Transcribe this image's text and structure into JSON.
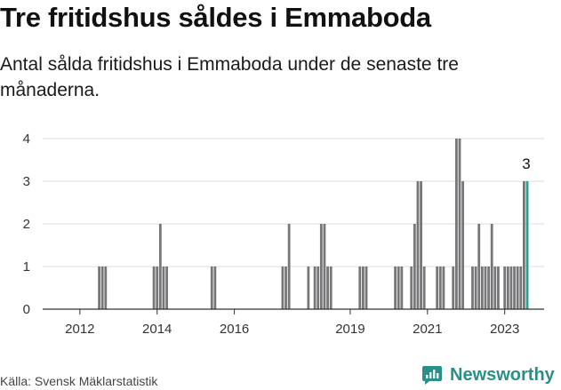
{
  "header": {
    "title": "Tre fritidshus såldes i Emmaboda",
    "subtitle": "Antal sålda fritidshus i Emmaboda under de senaste tre månaderna."
  },
  "footer": {
    "source": "Källa: Svensk Mäklarstatistik",
    "brand": "Newsworthy"
  },
  "colors": {
    "bar": "#77777a",
    "highlight": "#2a9d8f",
    "grid": "#dcdcdc",
    "axis": "#333333"
  },
  "chart_data": {
    "type": "bar",
    "title": "Tre fritidshus såldes i Emmaboda",
    "subtitle": "Antal sålda fritidshus i Emmaboda under de senaste tre månaderna.",
    "xlabel": "",
    "ylabel": "",
    "x_unit": "quarterly, rolling 3-month value at month index (months since Jan 2011)",
    "ylim": [
      0,
      4
    ],
    "yticks": [
      0,
      1,
      2,
      3,
      4
    ],
    "xticks": [
      {
        "label": "2012",
        "month": 12
      },
      {
        "label": "2014",
        "month": 36
      },
      {
        "label": "2016",
        "month": 60
      },
      {
        "label": "2019",
        "month": 96
      },
      {
        "label": "2021",
        "month": 120
      },
      {
        "label": "2023",
        "month": 144
      }
    ],
    "xlim": [
      0,
      160
    ],
    "grid": true,
    "bars": [
      {
        "m": 18,
        "v": 1
      },
      {
        "m": 19,
        "v": 1
      },
      {
        "m": 20,
        "v": 1
      },
      {
        "m": 35,
        "v": 1
      },
      {
        "m": 36,
        "v": 1
      },
      {
        "m": 37,
        "v": 2
      },
      {
        "m": 38,
        "v": 1
      },
      {
        "m": 39,
        "v": 1
      },
      {
        "m": 53,
        "v": 1
      },
      {
        "m": 54,
        "v": 1
      },
      {
        "m": 75,
        "v": 1
      },
      {
        "m": 76,
        "v": 1
      },
      {
        "m": 77,
        "v": 2
      },
      {
        "m": 83,
        "v": 1
      },
      {
        "m": 85,
        "v": 1
      },
      {
        "m": 86,
        "v": 1
      },
      {
        "m": 87,
        "v": 2
      },
      {
        "m": 88,
        "v": 2
      },
      {
        "m": 89,
        "v": 1
      },
      {
        "m": 90,
        "v": 1
      },
      {
        "m": 99,
        "v": 1
      },
      {
        "m": 100,
        "v": 1
      },
      {
        "m": 101,
        "v": 1
      },
      {
        "m": 110,
        "v": 1
      },
      {
        "m": 111,
        "v": 1
      },
      {
        "m": 112,
        "v": 1
      },
      {
        "m": 115,
        "v": 1
      },
      {
        "m": 116,
        "v": 2
      },
      {
        "m": 117,
        "v": 3
      },
      {
        "m": 118,
        "v": 3
      },
      {
        "m": 119,
        "v": 1
      },
      {
        "m": 123,
        "v": 1
      },
      {
        "m": 124,
        "v": 1
      },
      {
        "m": 125,
        "v": 1
      },
      {
        "m": 128,
        "v": 1
      },
      {
        "m": 129,
        "v": 4
      },
      {
        "m": 130,
        "v": 4
      },
      {
        "m": 131,
        "v": 3
      },
      {
        "m": 134,
        "v": 1
      },
      {
        "m": 135,
        "v": 1
      },
      {
        "m": 136,
        "v": 2
      },
      {
        "m": 137,
        "v": 1
      },
      {
        "m": 138,
        "v": 1
      },
      {
        "m": 139,
        "v": 1
      },
      {
        "m": 140,
        "v": 2
      },
      {
        "m": 141,
        "v": 1
      },
      {
        "m": 142,
        "v": 1
      },
      {
        "m": 144,
        "v": 1
      },
      {
        "m": 145,
        "v": 1
      },
      {
        "m": 146,
        "v": 1
      },
      {
        "m": 147,
        "v": 1
      },
      {
        "m": 148,
        "v": 1
      },
      {
        "m": 149,
        "v": 1
      },
      {
        "m": 150,
        "v": 3
      },
      {
        "m": 151,
        "v": 3,
        "highlight": true
      }
    ],
    "annotation": {
      "label": "3",
      "m": 151,
      "v": 3
    }
  }
}
